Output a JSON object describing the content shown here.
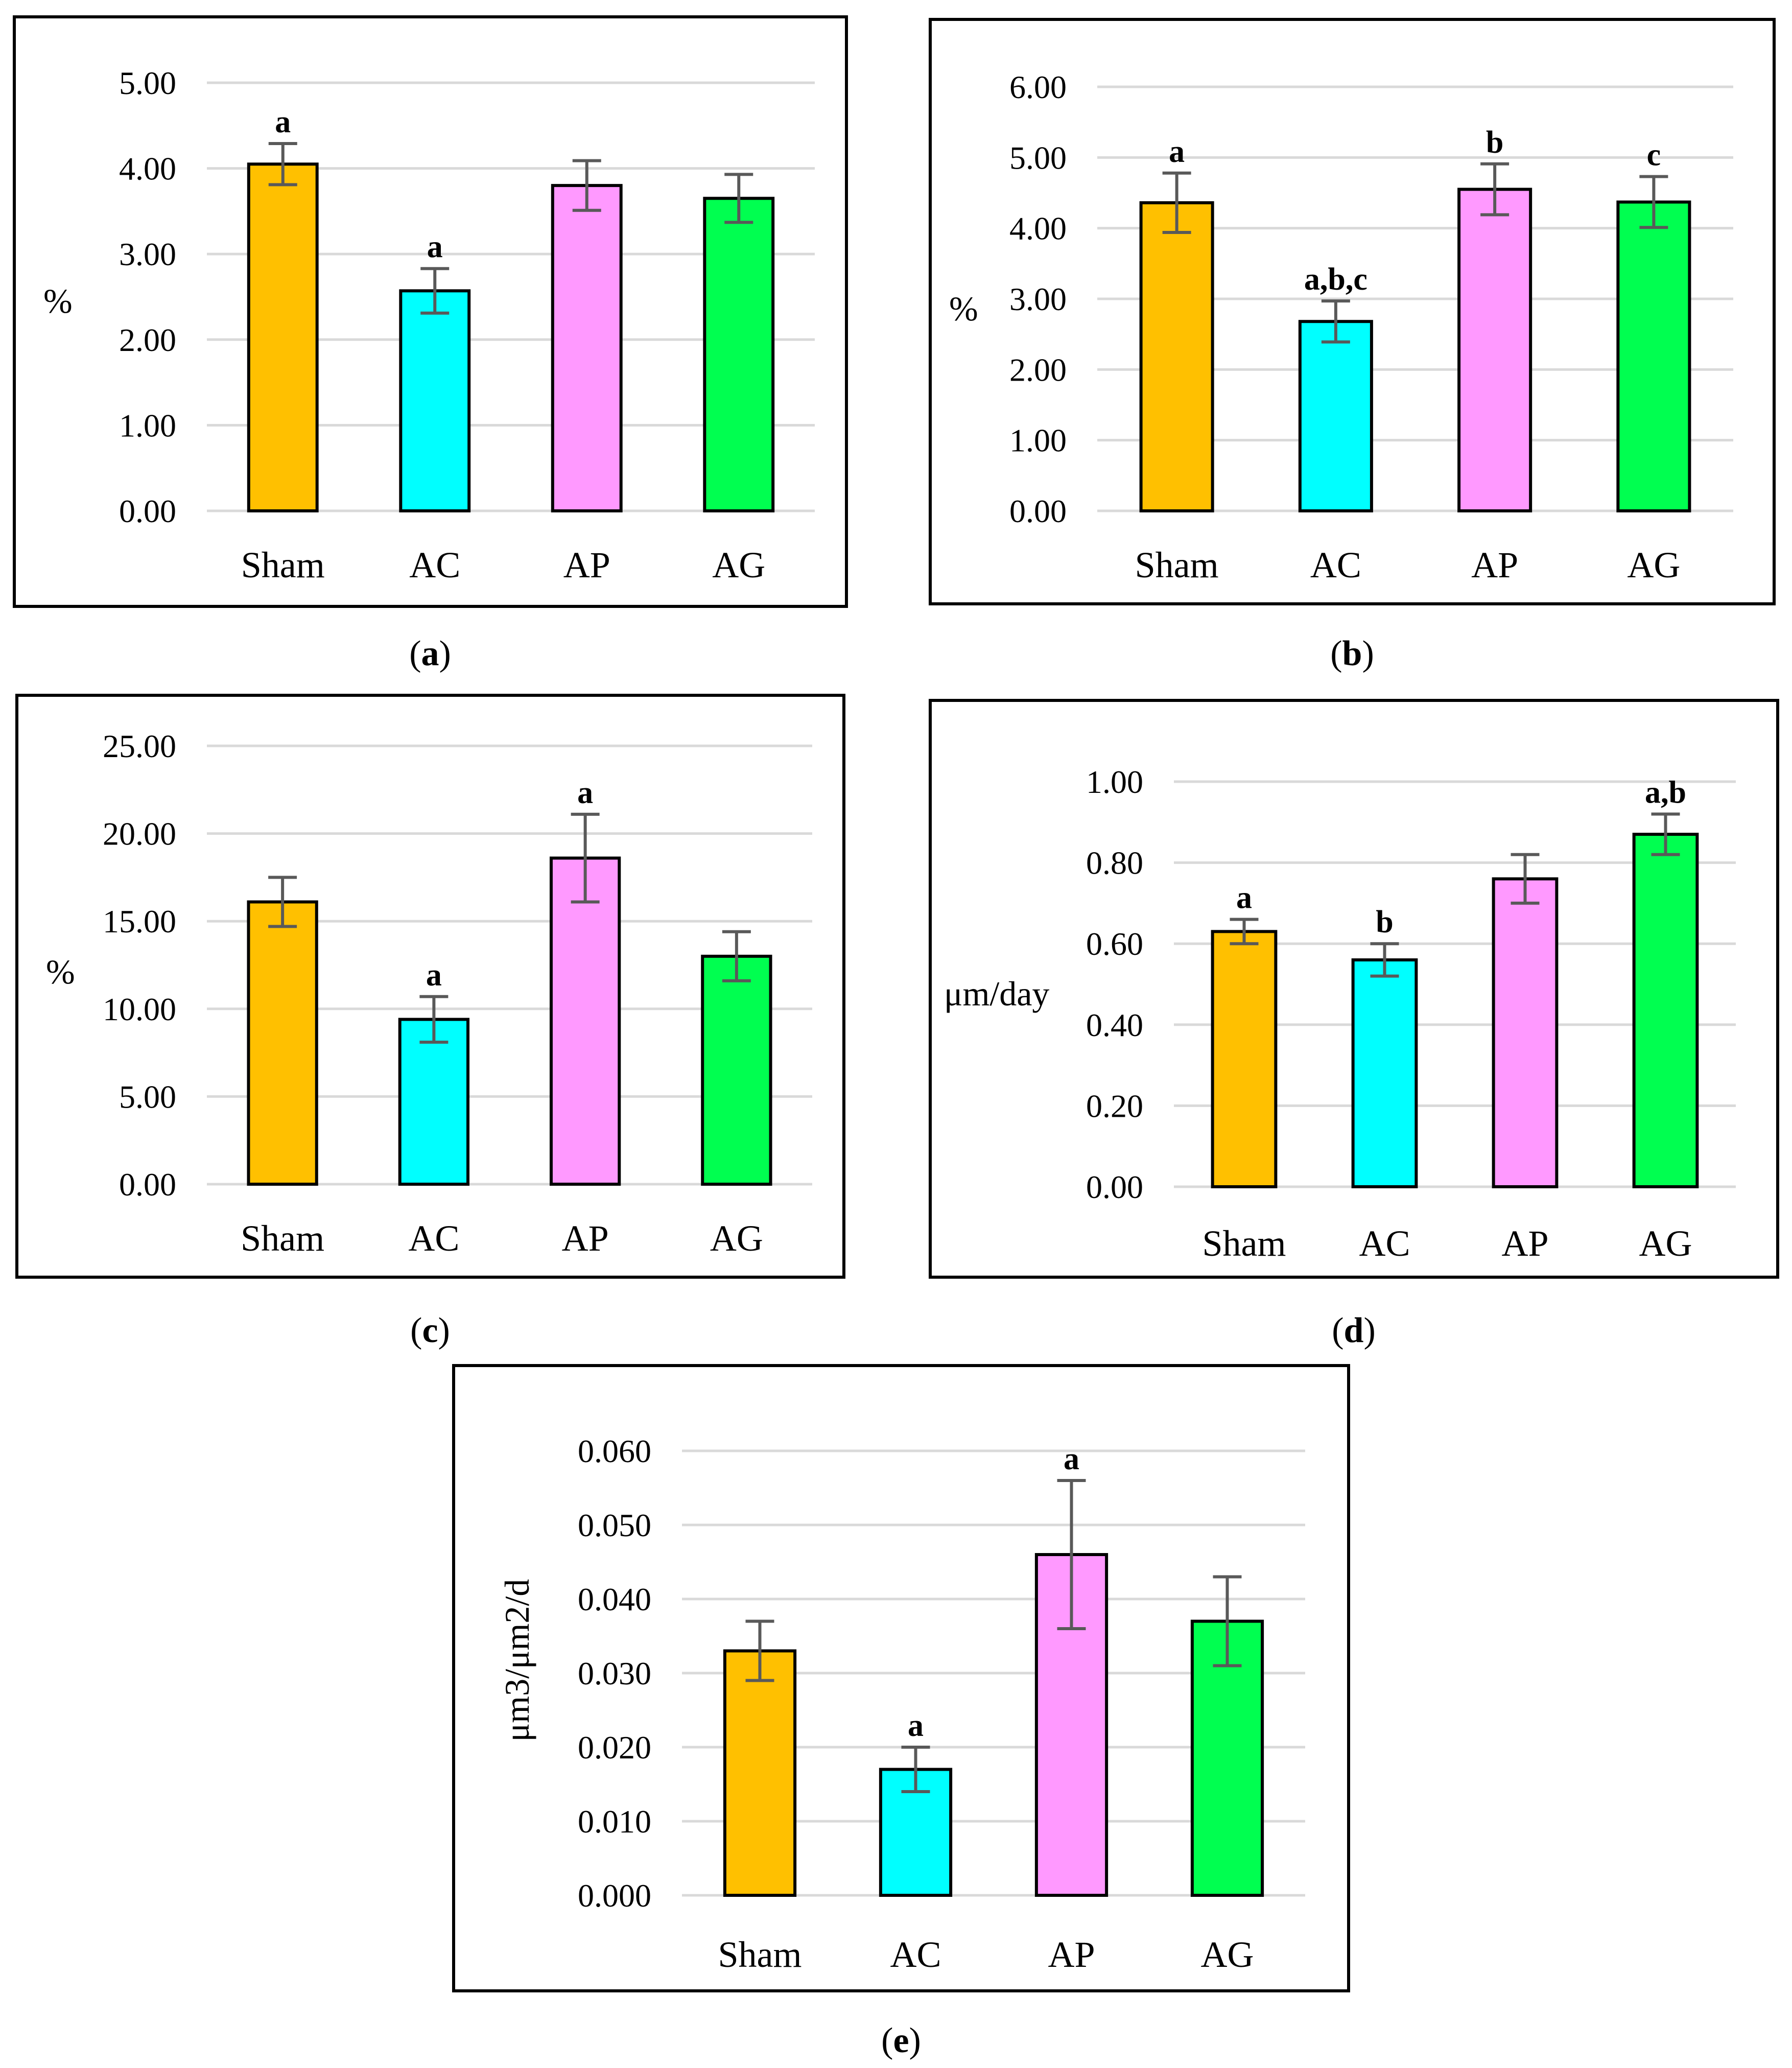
{
  "chart_data": [
    {
      "panel": "a",
      "type": "bar",
      "categories": [
        "Sham",
        "AC",
        "AP",
        "AG"
      ],
      "values": [
        4.05,
        2.57,
        3.8,
        3.65
      ],
      "errors": [
        0.24,
        0.26,
        0.29,
        0.28
      ],
      "significance": [
        "a",
        "a",
        "",
        ""
      ],
      "ylabel": "%",
      "ylim": [
        0,
        5
      ],
      "yticks": [
        "0.00",
        "1.00",
        "2.00",
        "3.00",
        "4.00",
        "5.00"
      ],
      "colors": [
        "#ffc000",
        "#00ffff",
        "#ff99ff",
        "#00ff50"
      ],
      "caption": "a"
    },
    {
      "panel": "b",
      "type": "bar",
      "categories": [
        "Sham",
        "AC",
        "AP",
        "AG"
      ],
      "values": [
        4.36,
        2.68,
        4.55,
        4.37
      ],
      "errors": [
        0.42,
        0.29,
        0.36,
        0.36
      ],
      "significance": [
        "a",
        "a,b,c",
        "b",
        "c"
      ],
      "ylabel": "%",
      "ylim": [
        0,
        6
      ],
      "yticks": [
        "0.00",
        "1.00",
        "2.00",
        "3.00",
        "4.00",
        "5.00",
        "6.00"
      ],
      "colors": [
        "#ffc000",
        "#00ffff",
        "#ff99ff",
        "#00ff50"
      ],
      "caption": "b"
    },
    {
      "panel": "c",
      "type": "bar",
      "categories": [
        "Sham",
        "AC",
        "AP",
        "AG"
      ],
      "values": [
        16.1,
        9.4,
        18.6,
        13.0
      ],
      "errors": [
        1.4,
        1.3,
        2.5,
        1.4
      ],
      "significance": [
        "",
        "a",
        "a",
        ""
      ],
      "ylabel": "%",
      "ylim": [
        0,
        25
      ],
      "yticks": [
        "0.00",
        "5.00",
        "10.00",
        "15.00",
        "20.00",
        "25.00"
      ],
      "colors": [
        "#ffc000",
        "#00ffff",
        "#ff99ff",
        "#00ff50"
      ],
      "caption": "c"
    },
    {
      "panel": "d",
      "type": "bar",
      "categories": [
        "Sham",
        "AC",
        "AP",
        "AG"
      ],
      "values": [
        0.63,
        0.56,
        0.76,
        0.87
      ],
      "errors": [
        0.03,
        0.04,
        0.06,
        0.05
      ],
      "significance": [
        "a",
        "b",
        "",
        "a,b"
      ],
      "ylabel": "μm/day",
      "ylim": [
        0,
        1
      ],
      "yticks": [
        "0.00",
        "0.20",
        "0.40",
        "0.60",
        "0.80",
        "1.00"
      ],
      "colors": [
        "#ffc000",
        "#00ffff",
        "#ff99ff",
        "#00ff50"
      ],
      "caption": "d"
    },
    {
      "panel": "e",
      "type": "bar",
      "categories": [
        "Sham",
        "AC",
        "AP",
        "AG"
      ],
      "values": [
        0.033,
        0.017,
        0.046,
        0.037
      ],
      "errors": [
        0.004,
        0.003,
        0.01,
        0.006
      ],
      "significance": [
        "",
        "a",
        "a",
        ""
      ],
      "ylabel": "μm3/μm2/d",
      "ylim": [
        0,
        0.06
      ],
      "yticks": [
        "0.000",
        "0.010",
        "0.020",
        "0.030",
        "0.040",
        "0.050",
        "0.060"
      ],
      "colors": [
        "#ffc000",
        "#00ffff",
        "#ff99ff",
        "#00ff50"
      ],
      "caption": "e"
    }
  ]
}
